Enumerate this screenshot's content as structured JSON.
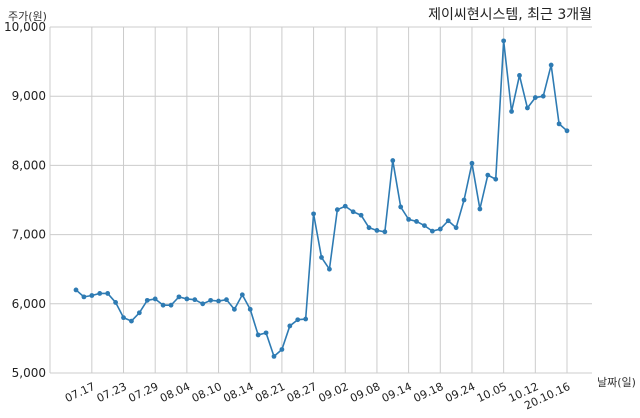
{
  "chart_data": {
    "type": "line",
    "title": "제이씨현시스템, 최근 3개월",
    "ylabel": "주가(원)",
    "xlabel": "날짜(일)",
    "ylim": [
      5000,
      10000
    ],
    "grid": true,
    "yticks": [
      5000,
      6000,
      7000,
      8000,
      9000,
      10000
    ],
    "ytick_labels": [
      "5,000",
      "6,000",
      "7,000",
      "8,000",
      "9,000",
      "10,000"
    ],
    "xticks": [
      {
        "label": "07.17",
        "index": 2
      },
      {
        "label": "07.23",
        "index": 6
      },
      {
        "label": "07.29",
        "index": 10
      },
      {
        "label": "08.04",
        "index": 14
      },
      {
        "label": "08.10",
        "index": 18
      },
      {
        "label": "08.14",
        "index": 22
      },
      {
        "label": "08.21",
        "index": 26
      },
      {
        "label": "08.27",
        "index": 30
      },
      {
        "label": "09.02",
        "index": 34
      },
      {
        "label": "09.08",
        "index": 38
      },
      {
        "label": "09.14",
        "index": 42
      },
      {
        "label": "09.18",
        "index": 46
      },
      {
        "label": "09.24",
        "index": 50
      },
      {
        "label": "10.05",
        "index": 54
      },
      {
        "label": "10.12",
        "index": 58
      },
      {
        "label": "20.10.16",
        "index": 62
      }
    ],
    "series": [
      {
        "color": "#2e7bb3",
        "values": [
          6200,
          6100,
          6120,
          6150,
          6150,
          6020,
          5800,
          5750,
          5870,
          6050,
          6070,
          5980,
          5980,
          6100,
          6070,
          6060,
          6000,
          6050,
          6040,
          6060,
          5920,
          6130,
          5920,
          5550,
          5580,
          5240,
          5340,
          5680,
          5770,
          5780,
          7300,
          6670,
          6500,
          7360,
          7410,
          7330,
          7280,
          7100,
          7060,
          7040,
          8070,
          7400,
          7220,
          7190,
          7130,
          7050,
          7080,
          7200,
          7100,
          7500,
          8030,
          7370,
          7860,
          7800,
          9800,
          8780,
          9300,
          8830,
          8980,
          9000,
          9450,
          8600,
          8500
        ]
      }
    ]
  }
}
